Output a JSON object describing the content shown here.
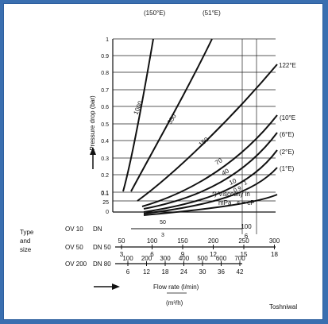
{
  "chart_data": {
    "type": "line",
    "ylabel": "Pressure drop (bar)",
    "xlabel": "Flow rate (l/min)",
    "xlabel_alt": "(m³/h)",
    "y_ticks": [
      "1",
      "0.9",
      "0.8",
      "0.7",
      "0.6",
      "0.5",
      "0.4",
      "0.3",
      "0.2",
      "0.1"
    ],
    "y_bottom_ticks": [
      "0.1",
      "25",
      "0"
    ],
    "type_label": "Type\nand\nsize",
    "type_lines": [
      "Type",
      "and",
      "size"
    ],
    "size_rows": [
      {
        "name": "OV 10",
        "dn": "DN",
        "flow_lmin": [
          "50"
        ],
        "flow_m3h": [
          "3"
        ],
        "extra": [
          "100",
          "6"
        ]
      },
      {
        "name": "OV 50",
        "dn": "DN 50",
        "flow_lmin": [
          "50",
          "100",
          "150",
          "200",
          "250",
          "300"
        ],
        "flow_m3h": [
          "3",
          "6",
          "9",
          "12",
          "15",
          "18"
        ]
      },
      {
        "name": "OV 200",
        "dn": "DN 80",
        "flow_lmin": [
          "100",
          "200",
          "300",
          "400",
          "500",
          "600",
          "700"
        ],
        "flow_m3h": [
          "6",
          "12",
          "18",
          "24",
          "30",
          "36",
          "42"
        ]
      }
    ],
    "series": [
      {
        "name": "(150°E)",
        "label_pos": "top"
      },
      {
        "name": "(51°E)",
        "label_pos": "top"
      },
      {
        "name": "122°E",
        "label_pos": "right"
      },
      {
        "name": "(10°E",
        "label_pos": "right"
      },
      {
        "name": "(6°E)",
        "label_pos": "right"
      },
      {
        "name": "(2°E)",
        "label_pos": "right"
      },
      {
        "name": "(1°E)",
        "label_pos": "right"
      }
    ],
    "curve_labels": [
      "1000",
      "350",
      "150",
      "70",
      "40",
      "10",
      "0.9",
      "1"
    ],
    "note": "*) Viscosity in mPa . s = cP"
  },
  "credit": "Toshniwal"
}
